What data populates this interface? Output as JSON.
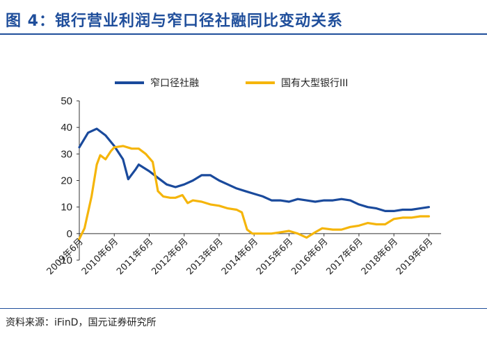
{
  "header": {
    "title": "图 4：银行营业利润与窄口径社融同比变动关系"
  },
  "footer": {
    "source": "资料来源：iFinD，国元证券研究所"
  },
  "colors": {
    "title": "#1f4e9b",
    "series1": "#1a4a9c",
    "series2": "#f5b50a"
  },
  "chart_data": {
    "type": "line",
    "title": "",
    "xlabel": "",
    "ylabel": "",
    "ylim": [
      -10,
      50
    ],
    "yticks": [
      -10,
      0,
      10,
      20,
      30,
      40,
      50
    ],
    "y_tick_labels": [
      "-10",
      "0",
      "10",
      "20",
      "30",
      "40",
      "50"
    ],
    "x_tick_labels": [
      "2009年6月",
      "2010年6月",
      "2011年6月",
      "2012年6月",
      "2013年6月",
      "2014年6月",
      "2015年6月",
      "2016年6月",
      "2017年6月",
      "2018年6月",
      "2019年6月"
    ],
    "grid": false,
    "legend": "top",
    "series": [
      {
        "name": "窄口径社融",
        "color": "#1a4a9c",
        "points": [
          [
            2009.5,
            32.5
          ],
          [
            2009.75,
            38
          ],
          [
            2010.0,
            39.5
          ],
          [
            2010.25,
            37
          ],
          [
            2010.5,
            33
          ],
          [
            2010.75,
            28
          ],
          [
            2010.9,
            20.5
          ],
          [
            2011.1,
            24
          ],
          [
            2011.2,
            26
          ],
          [
            2011.5,
            23.5
          ],
          [
            2011.75,
            21
          ],
          [
            2012.0,
            18.5
          ],
          [
            2012.25,
            17.5
          ],
          [
            2012.5,
            18.5
          ],
          [
            2012.75,
            20
          ],
          [
            2013.0,
            22
          ],
          [
            2013.25,
            22
          ],
          [
            2013.5,
            20
          ],
          [
            2013.75,
            18.5
          ],
          [
            2014.0,
            17
          ],
          [
            2014.25,
            16
          ],
          [
            2014.5,
            15
          ],
          [
            2014.75,
            14
          ],
          [
            2015.0,
            12.5
          ],
          [
            2015.25,
            12.5
          ],
          [
            2015.5,
            12
          ],
          [
            2015.75,
            13
          ],
          [
            2016.0,
            12.5
          ],
          [
            2016.25,
            12
          ],
          [
            2016.5,
            12.5
          ],
          [
            2016.75,
            12.5
          ],
          [
            2017.0,
            13
          ],
          [
            2017.25,
            12.5
          ],
          [
            2017.5,
            11
          ],
          [
            2017.75,
            10
          ],
          [
            2018.0,
            9.5
          ],
          [
            2018.25,
            8.5
          ],
          [
            2018.5,
            8.5
          ],
          [
            2018.75,
            9
          ],
          [
            2019.0,
            9
          ],
          [
            2019.25,
            9.5
          ],
          [
            2019.5,
            10
          ]
        ]
      },
      {
        "name": "国有大型银行III",
        "color": "#f5b50a",
        "points": [
          [
            2009.5,
            -2
          ],
          [
            2009.65,
            2
          ],
          [
            2009.85,
            14
          ],
          [
            2010.0,
            26
          ],
          [
            2010.1,
            29.5
          ],
          [
            2010.25,
            28
          ],
          [
            2010.4,
            31
          ],
          [
            2010.5,
            32.5
          ],
          [
            2010.75,
            33
          ],
          [
            2011.0,
            32
          ],
          [
            2011.2,
            32
          ],
          [
            2011.4,
            30
          ],
          [
            2011.6,
            27
          ],
          [
            2011.75,
            16
          ],
          [
            2011.9,
            14
          ],
          [
            2012.1,
            13.5
          ],
          [
            2012.25,
            13.5
          ],
          [
            2012.45,
            14.5
          ],
          [
            2012.6,
            11.5
          ],
          [
            2012.75,
            12.5
          ],
          [
            2013.0,
            12
          ],
          [
            2013.25,
            11
          ],
          [
            2013.5,
            10.5
          ],
          [
            2013.75,
            9.5
          ],
          [
            2014.0,
            9
          ],
          [
            2014.15,
            8
          ],
          [
            2014.3,
            1.5
          ],
          [
            2014.45,
            0
          ],
          [
            2014.75,
            0
          ],
          [
            2015.0,
            0
          ],
          [
            2015.25,
            0.5
          ],
          [
            2015.5,
            1
          ],
          [
            2015.75,
            0
          ],
          [
            2016.0,
            -1.5
          ],
          [
            2016.25,
            0.5
          ],
          [
            2016.45,
            2
          ],
          [
            2016.75,
            1.5
          ],
          [
            2017.0,
            1.5
          ],
          [
            2017.25,
            2.5
          ],
          [
            2017.5,
            3
          ],
          [
            2017.75,
            4
          ],
          [
            2018.0,
            3.5
          ],
          [
            2018.25,
            3.5
          ],
          [
            2018.5,
            5.5
          ],
          [
            2018.75,
            6
          ],
          [
            2019.0,
            6
          ],
          [
            2019.25,
            6.5
          ],
          [
            2019.5,
            6.5
          ]
        ]
      }
    ]
  }
}
